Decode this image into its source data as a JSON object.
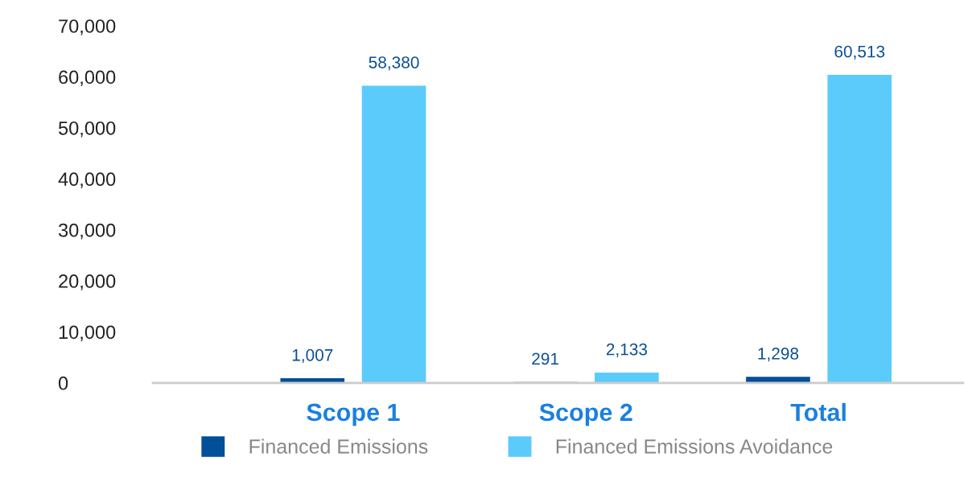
{
  "chart_data": {
    "type": "bar",
    "categories": [
      "Scope 1",
      "Scope 2",
      "Total"
    ],
    "series": [
      {
        "name": "Financed Emissions",
        "color": "#004f98",
        "values": [
          1007,
          291,
          1298
        ],
        "value_labels": [
          "1,007",
          "291",
          "1,298"
        ]
      },
      {
        "name": "Financed Emissions Avoidance",
        "color": "#5bcbfc",
        "values": [
          58380,
          2133,
          60513
        ],
        "value_labels": [
          "58,380",
          "2,133",
          "60,513"
        ]
      }
    ],
    "ylim": [
      0,
      70000
    ],
    "yticks": [
      {
        "value": 0,
        "label": "0"
      },
      {
        "value": 10000,
        "label": "10,000"
      },
      {
        "value": 20000,
        "label": "20,000"
      },
      {
        "value": 30000,
        "label": "30,000"
      },
      {
        "value": 40000,
        "label": "40,000"
      },
      {
        "value": 50000,
        "label": "50,000"
      },
      {
        "value": 60000,
        "label": "60,000"
      },
      {
        "value": 70000,
        "label": "70,000"
      }
    ],
    "grid": false,
    "legend": "bottom"
  }
}
